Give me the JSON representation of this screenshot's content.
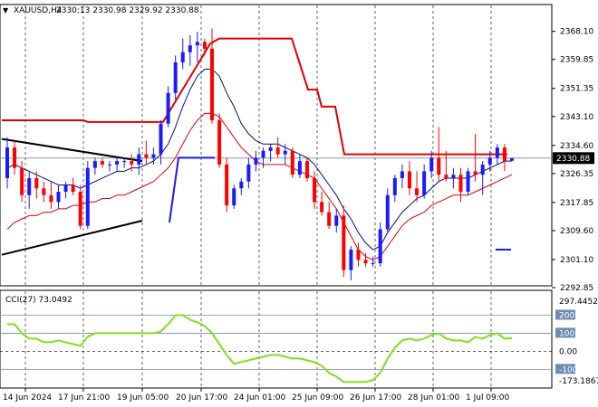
{
  "header": {
    "symbol": "XAUUSD,H4",
    "ohlc": "2330;13 2330.98 2329.92 2330.88",
    "indicator": "CCI(27) 73.0492"
  },
  "colors": {
    "bull": "#1a1aff",
    "bear": "#ff0000",
    "ma_fast": "#0a0a8a",
    "ma_slow": "#e00000",
    "resistance": "#e00000",
    "support": "#1a1aff",
    "triangle": "#000000",
    "cci_line": "#7fe020",
    "current_line": "#7a8aa0",
    "price_tag_bg": "#000000",
    "price_tag_fg": "#ffffff",
    "cci_levels": "#6e8cb4"
  },
  "chart_data": [
    {
      "type": "candlestick",
      "ylim": [
        2292.85,
        2372.0
      ],
      "price_ticks": [
        "2368.10",
        "2359.85",
        "2351.35",
        "2343.10",
        "2334.60",
        "2326.35",
        "2317.85",
        "2309.60",
        "2301.10",
        "2292.85"
      ],
      "current_price": "2330.88",
      "time_labels": [
        "14 Jun 2024",
        "17 Jun 21:00",
        "19 Jun 05:00",
        "20 Jun 17:00",
        "24 Jun 01:00",
        "25 Jun 09:00",
        "26 Jun 17:00",
        "28 Jun 01:00",
        "1 Jul 09:00"
      ],
      "candles": [
        {
          "o": 2325,
          "h": 2337,
          "l": 2322,
          "c": 2334
        },
        {
          "o": 2334,
          "h": 2336,
          "l": 2326,
          "c": 2328
        },
        {
          "o": 2328,
          "h": 2330,
          "l": 2318,
          "c": 2320
        },
        {
          "o": 2320,
          "h": 2327,
          "l": 2316,
          "c": 2325
        },
        {
          "o": 2325,
          "h": 2327,
          "l": 2319,
          "c": 2322
        },
        {
          "o": 2322,
          "h": 2324,
          "l": 2318,
          "c": 2320
        },
        {
          "o": 2320,
          "h": 2324,
          "l": 2316,
          "c": 2318
        },
        {
          "o": 2318,
          "h": 2323,
          "l": 2316,
          "c": 2321
        },
        {
          "o": 2321,
          "h": 2324,
          "l": 2319,
          "c": 2323
        },
        {
          "o": 2323,
          "h": 2325,
          "l": 2320,
          "c": 2321
        },
        {
          "o": 2321,
          "h": 2323,
          "l": 2310,
          "c": 2311
        },
        {
          "o": 2311,
          "h": 2330,
          "l": 2310,
          "c": 2328
        },
        {
          "o": 2328,
          "h": 2331,
          "l": 2326,
          "c": 2330
        },
        {
          "o": 2330,
          "h": 2331,
          "l": 2328,
          "c": 2329
        },
        {
          "o": 2329,
          "h": 2330,
          "l": 2327,
          "c": 2329
        },
        {
          "o": 2329,
          "h": 2331,
          "l": 2327,
          "c": 2330
        },
        {
          "o": 2330,
          "h": 2331,
          "l": 2328,
          "c": 2330
        },
        {
          "o": 2330,
          "h": 2332,
          "l": 2327,
          "c": 2329
        },
        {
          "o": 2329,
          "h": 2334,
          "l": 2326,
          "c": 2332
        },
        {
          "o": 2332,
          "h": 2336,
          "l": 2329,
          "c": 2331
        },
        {
          "o": 2331,
          "h": 2334,
          "l": 2329,
          "c": 2332
        },
        {
          "o": 2332,
          "h": 2342,
          "l": 2329,
          "c": 2341
        },
        {
          "o": 2341,
          "h": 2352,
          "l": 2340,
          "c": 2350
        },
        {
          "o": 2350,
          "h": 2361,
          "l": 2348,
          "c": 2359
        },
        {
          "o": 2359,
          "h": 2366,
          "l": 2357,
          "c": 2362
        },
        {
          "o": 2362,
          "h": 2367,
          "l": 2358,
          "c": 2364
        },
        {
          "o": 2364,
          "h": 2368,
          "l": 2359,
          "c": 2365
        },
        {
          "o": 2365,
          "h": 2366,
          "l": 2361,
          "c": 2363
        },
        {
          "o": 2363,
          "h": 2369,
          "l": 2341,
          "c": 2342
        },
        {
          "o": 2342,
          "h": 2344,
          "l": 2328,
          "c": 2329
        },
        {
          "o": 2329,
          "h": 2331,
          "l": 2315,
          "c": 2317
        },
        {
          "o": 2317,
          "h": 2323,
          "l": 2316,
          "c": 2322
        },
        {
          "o": 2322,
          "h": 2325,
          "l": 2320,
          "c": 2324
        },
        {
          "o": 2324,
          "h": 2331,
          "l": 2322,
          "c": 2329
        },
        {
          "o": 2329,
          "h": 2333,
          "l": 2327,
          "c": 2331
        },
        {
          "o": 2331,
          "h": 2334,
          "l": 2328,
          "c": 2333
        },
        {
          "o": 2333,
          "h": 2335,
          "l": 2330,
          "c": 2334
        },
        {
          "o": 2334,
          "h": 2337,
          "l": 2331,
          "c": 2332
        },
        {
          "o": 2332,
          "h": 2335,
          "l": 2329,
          "c": 2333
        },
        {
          "o": 2333,
          "h": 2334,
          "l": 2325,
          "c": 2326
        },
        {
          "o": 2326,
          "h": 2332,
          "l": 2325,
          "c": 2330
        },
        {
          "o": 2330,
          "h": 2331,
          "l": 2324,
          "c": 2325
        },
        {
          "o": 2325,
          "h": 2327,
          "l": 2316,
          "c": 2318
        },
        {
          "o": 2318,
          "h": 2321,
          "l": 2314,
          "c": 2315
        },
        {
          "o": 2315,
          "h": 2318,
          "l": 2310,
          "c": 2311
        },
        {
          "o": 2311,
          "h": 2316,
          "l": 2309,
          "c": 2314
        },
        {
          "o": 2314,
          "h": 2317,
          "l": 2296,
          "c": 2298
        },
        {
          "o": 2298,
          "h": 2305,
          "l": 2295,
          "c": 2304
        },
        {
          "o": 2304,
          "h": 2306,
          "l": 2299,
          "c": 2301
        },
        {
          "o": 2301,
          "h": 2303,
          "l": 2299,
          "c": 2300
        },
        {
          "o": 2300,
          "h": 2302,
          "l": 2299,
          "c": 2300
        },
        {
          "o": 2300,
          "h": 2312,
          "l": 2299,
          "c": 2310
        },
        {
          "o": 2310,
          "h": 2322,
          "l": 2309,
          "c": 2320
        },
        {
          "o": 2320,
          "h": 2326,
          "l": 2318,
          "c": 2325
        },
        {
          "o": 2325,
          "h": 2329,
          "l": 2322,
          "c": 2327
        },
        {
          "o": 2327,
          "h": 2330,
          "l": 2320,
          "c": 2322
        },
        {
          "o": 2322,
          "h": 2327,
          "l": 2318,
          "c": 2320
        },
        {
          "o": 2320,
          "h": 2329,
          "l": 2319,
          "c": 2327
        },
        {
          "o": 2327,
          "h": 2333,
          "l": 2325,
          "c": 2331
        },
        {
          "o": 2331,
          "h": 2340,
          "l": 2324,
          "c": 2326
        },
        {
          "o": 2326,
          "h": 2333,
          "l": 2324,
          "c": 2325
        },
        {
          "o": 2325,
          "h": 2328,
          "l": 2322,
          "c": 2326
        },
        {
          "o": 2326,
          "h": 2328,
          "l": 2318,
          "c": 2321
        },
        {
          "o": 2321,
          "h": 2328,
          "l": 2320,
          "c": 2327
        },
        {
          "o": 2327,
          "h": 2338,
          "l": 2324,
          "c": 2326
        },
        {
          "o": 2326,
          "h": 2330,
          "l": 2320,
          "c": 2329
        },
        {
          "o": 2329,
          "h": 2333,
          "l": 2327,
          "c": 2331
        },
        {
          "o": 2331,
          "h": 2335,
          "l": 2329,
          "c": 2334
        },
        {
          "o": 2334,
          "h": 2335,
          "l": 2327,
          "c": 2330
        },
        {
          "o": 2330.13,
          "h": 2330.98,
          "l": 2329.92,
          "c": 2330.88
        }
      ],
      "ma_fast": [
        2328,
        2329,
        2328,
        2327,
        2326,
        2325,
        2324,
        2323,
        2323,
        2323,
        2322,
        2323,
        2324,
        2325,
        2326,
        2327,
        2327,
        2328,
        2328,
        2329,
        2330,
        2332,
        2335,
        2340,
        2346,
        2351,
        2355,
        2357,
        2357,
        2355,
        2350,
        2346,
        2341,
        2338,
        2336,
        2335,
        2335,
        2335,
        2334,
        2333,
        2332,
        2331,
        2329,
        2326,
        2323,
        2320,
        2316,
        2313,
        2309,
        2306,
        2304,
        2305,
        2309,
        2312,
        2315,
        2317,
        2319,
        2320,
        2322,
        2324,
        2325,
        2325,
        2325,
        2325,
        2326,
        2327,
        2328,
        2329,
        2330,
        2330
      ],
      "ma_slow": [
        2310,
        2312,
        2313,
        2314,
        2314,
        2315,
        2315,
        2316,
        2316,
        2317,
        2317,
        2318,
        2318,
        2319,
        2319,
        2320,
        2320,
        2321,
        2322,
        2323,
        2324,
        2326,
        2328,
        2331,
        2335,
        2339,
        2342,
        2344,
        2344,
        2343,
        2340,
        2337,
        2334,
        2332,
        2330,
        2329,
        2329,
        2329,
        2329,
        2328,
        2327,
        2326,
        2325,
        2322,
        2319,
        2316,
        2312,
        2308,
        2304,
        2302,
        2301,
        2302,
        2305,
        2308,
        2311,
        2313,
        2314,
        2315,
        2317,
        2318,
        2319,
        2320,
        2320,
        2320,
        2321,
        2322,
        2323,
        2324,
        2325,
        2326
      ],
      "cci_values": [
        150,
        150,
        100,
        70,
        70,
        50,
        50,
        60,
        50,
        40,
        30,
        80,
        100,
        100,
        100,
        100,
        100,
        100,
        100,
        100,
        100,
        110,
        150,
        200,
        200,
        175,
        160,
        140,
        100,
        40,
        -20,
        -70,
        -60,
        -50,
        -40,
        -30,
        -20,
        -20,
        -30,
        -40,
        -40,
        -50,
        -60,
        -80,
        -120,
        -140,
        -170,
        -170,
        -170,
        -170,
        -160,
        -120,
        -40,
        20,
        60,
        70,
        60,
        70,
        90,
        100,
        70,
        60,
        60,
        50,
        80,
        70,
        90,
        100,
        70,
        73
      ]
    }
  ]
}
